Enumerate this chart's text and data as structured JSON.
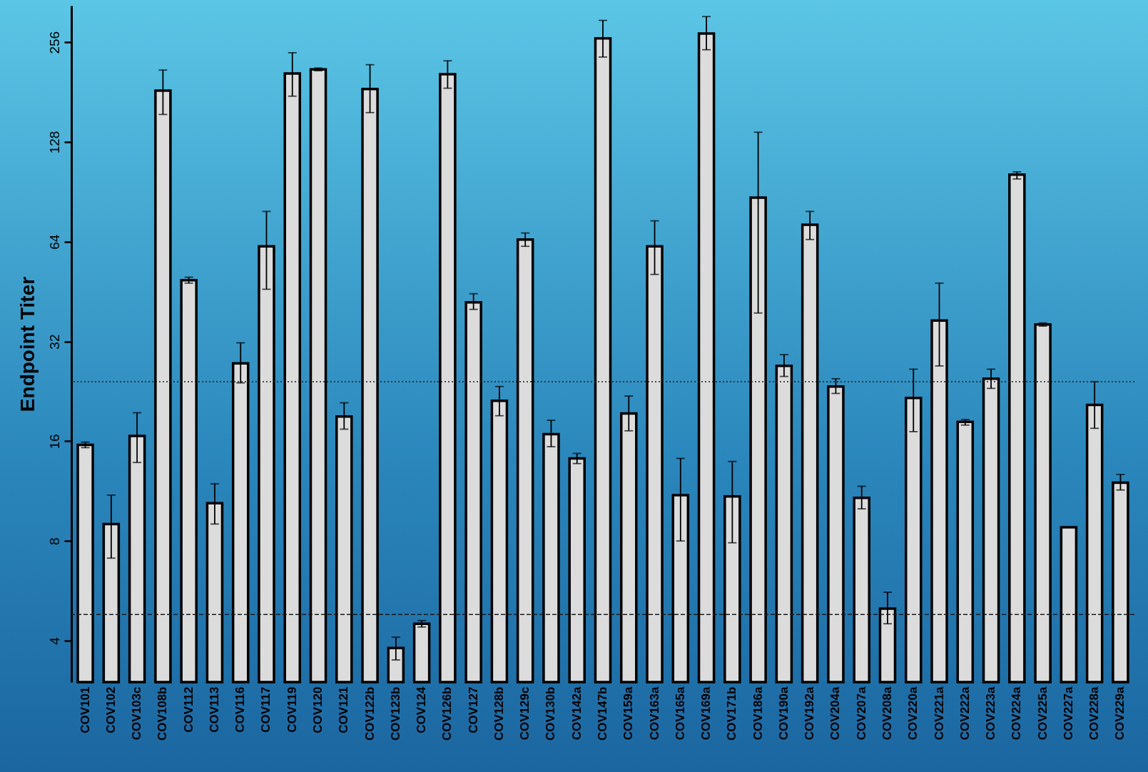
{
  "chart_data": {
    "type": "bar",
    "ylabel": "Endpoint Titer",
    "categories": [
      "COV101",
      "COV102",
      "COV103c",
      "COV108b",
      "COV112",
      "COV113",
      "COV116",
      "COV117",
      "COV119",
      "COV120",
      "COV121",
      "COV122b",
      "COV123b",
      "COV124",
      "COV126b",
      "COV127",
      "COV128b",
      "COV129c",
      "COV130b",
      "COV142a",
      "COV147b",
      "COV159a",
      "COV163a",
      "COV165a",
      "COV169a",
      "COV171b",
      "COV186a",
      "COV190a",
      "COV192a",
      "COV204a",
      "COV207a",
      "COV208a",
      "COV220a",
      "COV221a",
      "COV222a",
      "COV223a",
      "COV224a",
      "COV225a",
      "COV227a",
      "COV228a",
      "COV229a"
    ],
    "series": [
      {
        "color": "#dcdcdc",
        "values": [
          15.6,
          9,
          16.6,
          183,
          49,
          10.4,
          27.5,
          62,
          206,
          212,
          19,
          185,
          3.8,
          4.5,
          205,
          42,
          21.2,
          65,
          16.8,
          14.2,
          263,
          19.4,
          62,
          11,
          272,
          10.9,
          87,
          27,
          72,
          23.4,
          10.8,
          5,
          21.6,
          37,
          18.3,
          24.7,
          102,
          36,
          8.8,
          20.6,
          12
        ],
        "errors": [
          [
            15.3,
            15.9
          ],
          [
            7.1,
            11
          ],
          [
            13.8,
            19.5
          ],
          [
            155,
            211
          ],
          [
            48,
            50
          ],
          [
            9,
            11.9
          ],
          [
            24,
            31.7
          ],
          [
            46,
            79
          ],
          [
            176,
            238
          ],
          [
            210,
            214
          ],
          [
            17.4,
            20.9
          ],
          [
            157,
            219
          ],
          [
            3.5,
            4.1
          ],
          [
            4.4,
            4.6
          ],
          [
            186,
            225
          ],
          [
            40,
            44.6
          ],
          [
            19.1,
            23.4
          ],
          [
            62,
            68
          ],
          [
            15.4,
            18.5
          ],
          [
            13.7,
            14.7
          ],
          [
            231,
            298
          ],
          [
            17.2,
            21.9
          ],
          [
            51,
            74
          ],
          [
            8,
            14.2
          ],
          [
            243,
            306
          ],
          [
            7.9,
            13.9
          ],
          [
            39,
            137
          ],
          [
            25.1,
            29.2
          ],
          [
            65,
            79
          ],
          [
            22.3,
            24.7
          ],
          [
            10,
            11.7
          ],
          [
            4.5,
            5.6
          ],
          [
            17.1,
            26.4
          ],
          [
            27,
            48
          ],
          [
            17.9,
            18.6
          ],
          [
            23.1,
            26.4
          ],
          [
            99,
            104
          ],
          [
            35.6,
            36.4
          ],
          null,
          [
            17.5,
            24.2
          ],
          [
            11.4,
            12.7
          ]
        ]
      }
    ],
    "log": "y",
    "ylim": [
      3,
      330
    ],
    "yticks": [
      4,
      8,
      16,
      32,
      64,
      128,
      256
    ],
    "grid": false,
    "ref_lines": [
      {
        "axis": "y",
        "value": 24.2,
        "label": null,
        "line_style": "dotted",
        "color": "#1a1a1a"
      },
      {
        "axis": "y",
        "value": 4.8,
        "label": null,
        "line_style": "dashed",
        "color": "#1a1a1a"
      }
    ]
  }
}
